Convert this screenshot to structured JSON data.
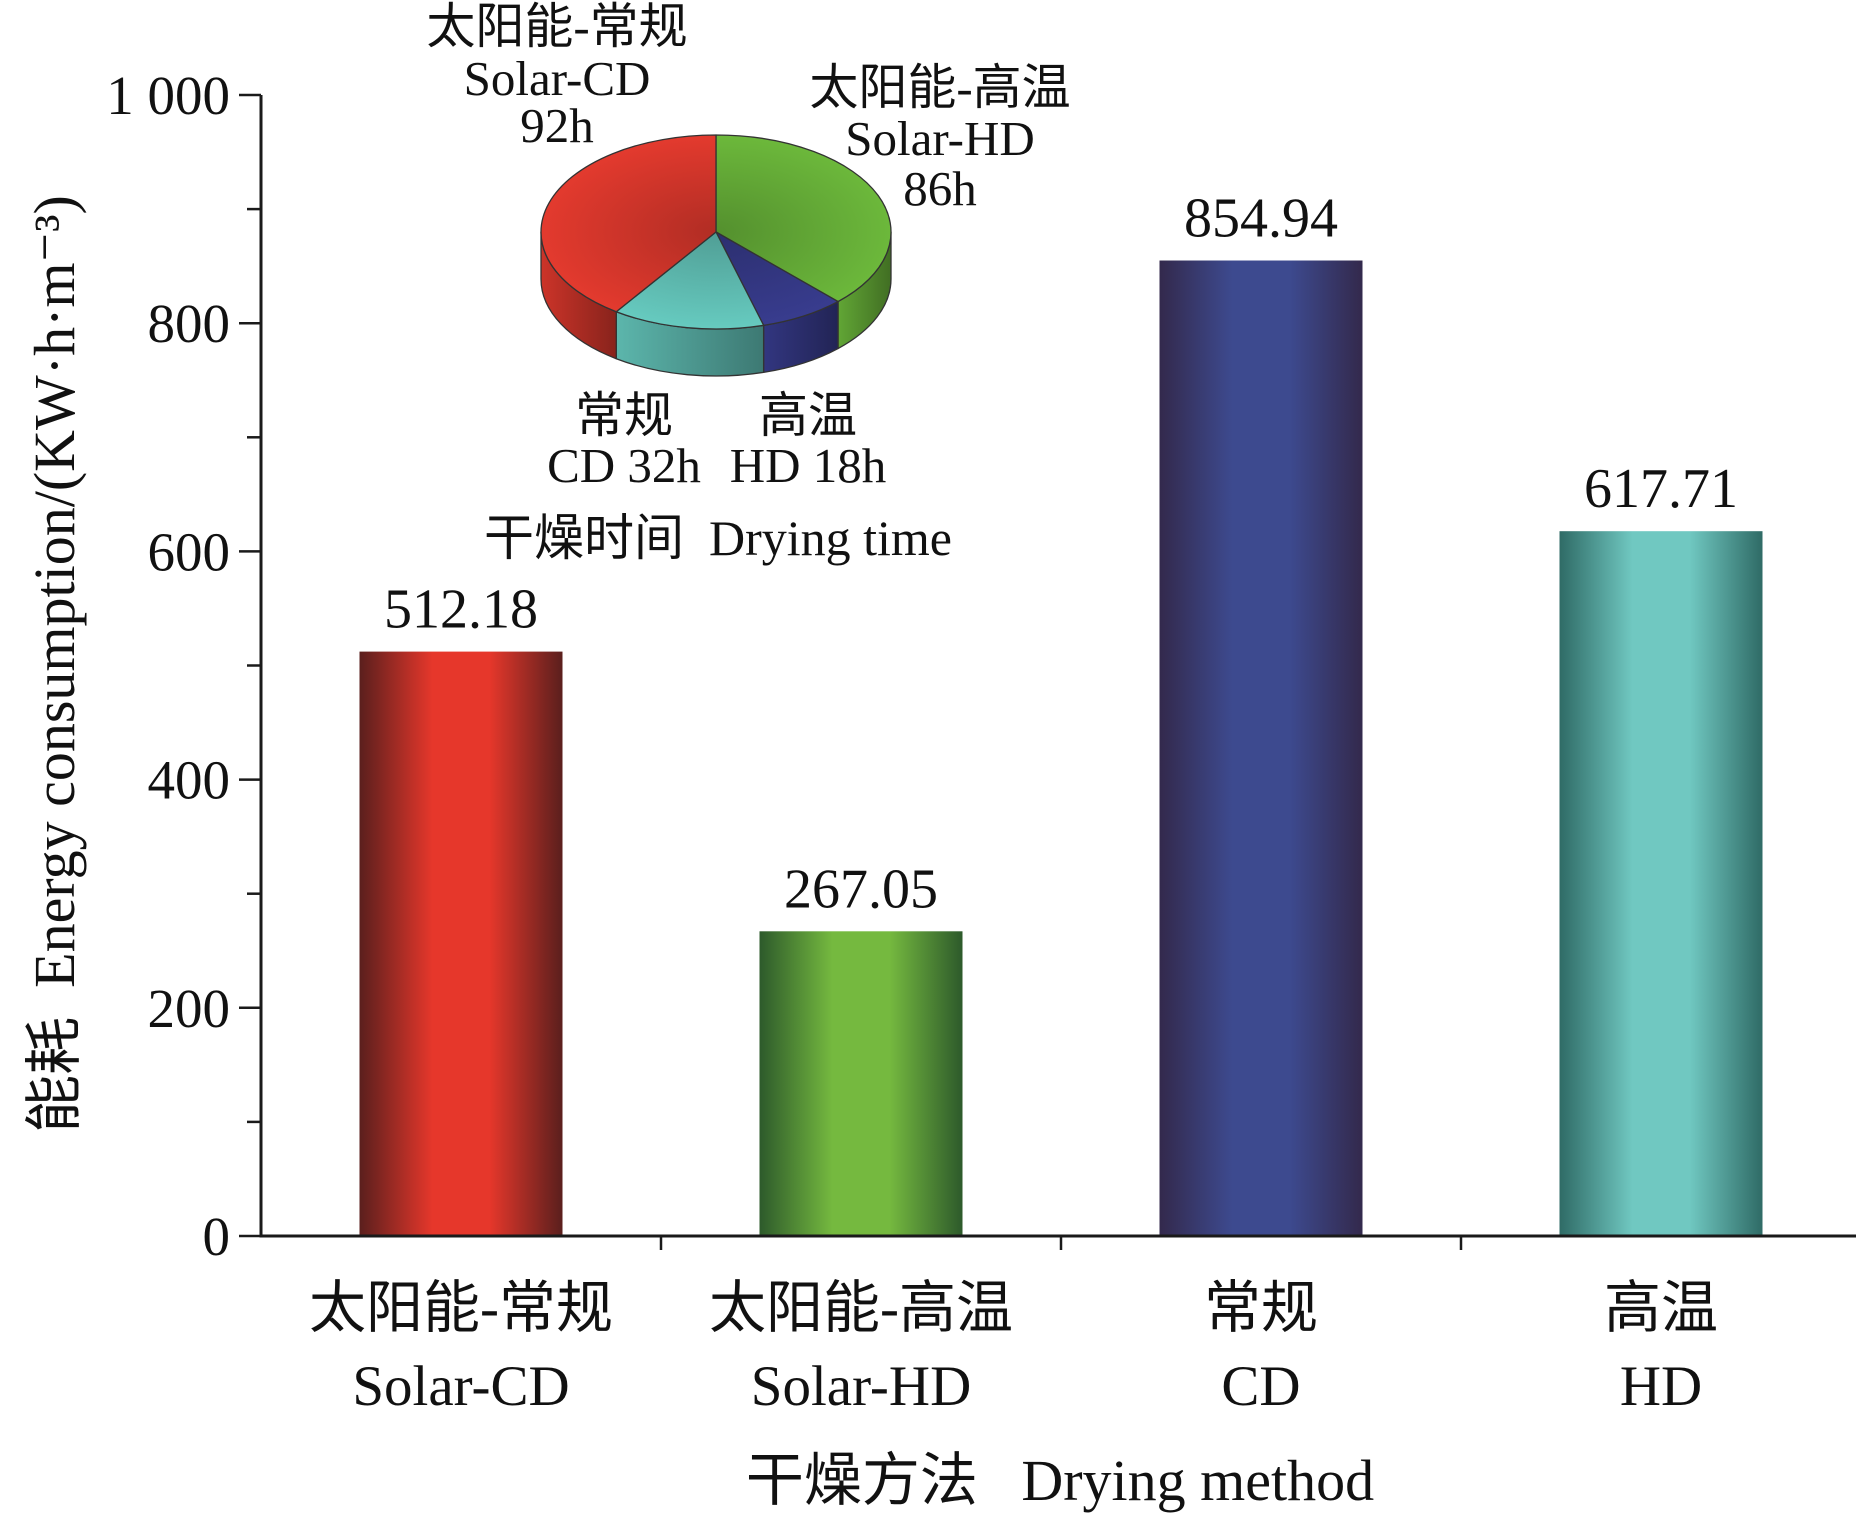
{
  "chart_data": [
    {
      "type": "bar",
      "categories": [
        "Solar-CD",
        "Solar-HD",
        "CD",
        "HD"
      ],
      "categories_zh": [
        "太阳能-常规",
        "太阳能-高温",
        "常规",
        "高温"
      ],
      "values": [
        512.18,
        267.05,
        854.94,
        617.71
      ],
      "colors": [
        "#e6372b",
        "#75b93f",
        "#3d4a8f",
        "#70c8c1"
      ],
      "edge_colors": [
        "#5a1f1d",
        "#2d5a2b",
        "#33294c",
        "#2f6b66"
      ],
      "xlabel": "干燥方法   Drying method",
      "ylabel": "能耗  Energy consumption/(KW·h·m⁻³)",
      "ylim": [
        0,
        1000
      ],
      "yticks": [
        0,
        200,
        400,
        600,
        800,
        1000
      ],
      "ytick_labels": [
        "0",
        "200",
        "400",
        "600",
        "800",
        "1 000"
      ],
      "minor_yticks": [
        100,
        300,
        500,
        700,
        900
      ],
      "grid": false
    },
    {
      "type": "pie",
      "title": "干燥时间  Drying time",
      "slices": [
        {
          "value": 86,
          "lines": [
            "太阳能-高温",
            "Solar-HD",
            "86h"
          ],
          "color": "#6cb83b"
        },
        {
          "value": 18,
          "lines": [
            "高温",
            "HD 18h"
          ],
          "color": "#383c8e"
        },
        {
          "value": 32,
          "lines": [
            "常规",
            "CD 32h"
          ],
          "color": "#66cabf"
        },
        {
          "value": 92,
          "lines": [
            "太阳能-常规",
            "Solar-CD",
            "92h"
          ],
          "color": "#e33a2e"
        }
      ]
    }
  ]
}
